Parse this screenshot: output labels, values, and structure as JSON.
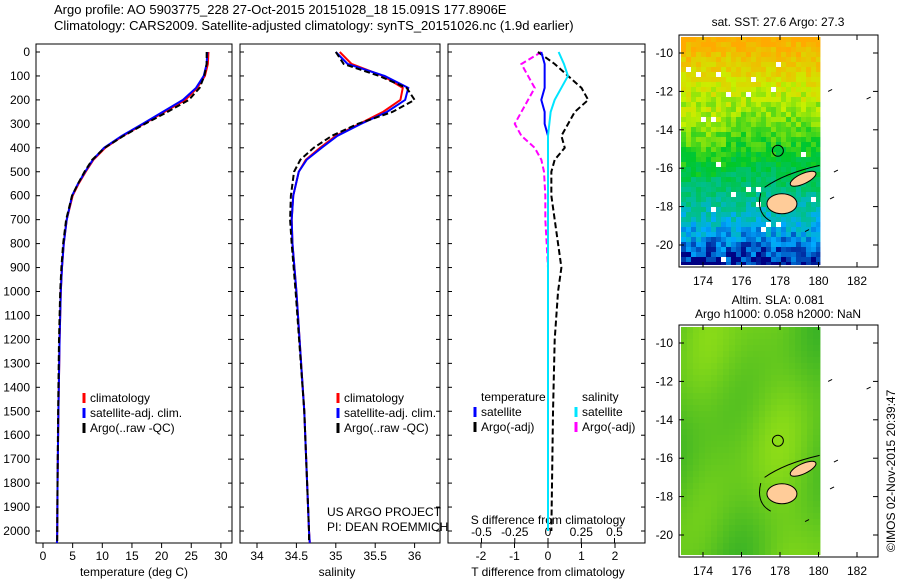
{
  "title": {
    "line1": "Argo profile: AO 5903775_228 27-Oct-2015 20151028_18 15.091S 177.8906E",
    "line2": "Climatology: CARS2009. Satellite-adjusted climatology: synTS_20151026.nc (1.9d earlier)"
  },
  "credit": "©IMOS 02-Nov-2015 20:39:47",
  "project": {
    "line1": "US ARGO PROJECT",
    "line2": "PI: DEAN ROEMMICH"
  },
  "colors": {
    "climatology": "#ff0000",
    "satellite": "#0000ff",
    "argo": "#000000",
    "sal_satellite": "#00e5ff",
    "sal_argo": "#ff00ff"
  },
  "chart_data": [
    {
      "type": "line",
      "id": "temperature",
      "xlabel": "temperature (deg C)",
      "ylabel": "",
      "xlim": [
        -1,
        31
      ],
      "ylim": [
        2050,
        0
      ],
      "xticks": [
        "0",
        "5",
        "10",
        "15",
        "20",
        "25",
        "30"
      ],
      "yticks": [
        "0",
        "100",
        "200",
        "300",
        "400",
        "500",
        "600",
        "700",
        "800",
        "900",
        "1000",
        "1100",
        "1200",
        "1300",
        "1400",
        "1500",
        "1600",
        "1700",
        "1800",
        "1900",
        "2000"
      ],
      "depth": [
        0,
        50,
        100,
        150,
        200,
        250,
        300,
        350,
        400,
        450,
        500,
        550,
        600,
        700,
        800,
        900,
        1000,
        1200,
        1500,
        1800,
        2000,
        2050
      ],
      "legend": [
        "climatology",
        "satellite-adj. clim.",
        "Argo(..raw -QC)"
      ],
      "series": [
        {
          "name": "climatology",
          "values": [
            27.9,
            27.8,
            27.3,
            26,
            24,
            20.5,
            17,
            13.5,
            10.5,
            8.5,
            7.2,
            6,
            5,
            4,
            3.5,
            3.2,
            3,
            2.8,
            2.6,
            2.45,
            2.4,
            2.35
          ]
        },
        {
          "name": "satellite-adj. clim.",
          "values": [
            27.7,
            27.6,
            27.1,
            25.8,
            23.6,
            20.2,
            16.8,
            13.3,
            10.3,
            8.4,
            7.1,
            5.9,
            4.9,
            4,
            3.5,
            3.2,
            3,
            2.8,
            2.6,
            2.45,
            2.4,
            2.35
          ]
        },
        {
          "name": "Argo(..raw -QC)",
          "values": [
            27.6,
            27.6,
            27.2,
            26.4,
            24.6,
            21,
            17.2,
            13.6,
            10.4,
            8.3,
            7,
            5.9,
            4.9,
            3.9,
            3.4,
            3.1,
            2.9,
            2.7,
            2.55,
            2.45,
            2.4,
            2.4
          ]
        }
      ]
    },
    {
      "type": "line",
      "id": "salinity",
      "xlabel": "salinity",
      "xlim": [
        33.8,
        36.3
      ],
      "ylim": [
        2050,
        0
      ],
      "xticks": [
        "34",
        "34.5",
        "35",
        "35.5",
        "36"
      ],
      "depth": [
        0,
        50,
        100,
        150,
        200,
        250,
        300,
        350,
        400,
        450,
        500,
        600,
        700,
        800,
        1000,
        1500,
        2000,
        2050
      ],
      "legend": [
        "climatology",
        "satellite-adj. clim.",
        "Argo(..raw -QC)"
      ],
      "series": [
        {
          "name": "climatology",
          "values": [
            35.05,
            35.2,
            35.6,
            35.85,
            35.82,
            35.6,
            35.3,
            35.0,
            34.8,
            34.62,
            34.53,
            34.46,
            34.44,
            34.45,
            34.5,
            34.6,
            34.66,
            34.67
          ]
        },
        {
          "name": "satellite-adj. clim.",
          "values": [
            35.0,
            35.15,
            35.62,
            35.92,
            35.88,
            35.65,
            35.32,
            35.02,
            34.82,
            34.63,
            34.53,
            34.46,
            34.44,
            34.45,
            34.5,
            34.6,
            34.66,
            34.67
          ]
        },
        {
          "name": "Argo(..raw -QC)",
          "values": [
            35.0,
            35.1,
            35.55,
            35.9,
            36.0,
            35.72,
            35.28,
            34.95,
            34.72,
            34.55,
            34.47,
            34.43,
            34.42,
            34.44,
            34.49,
            34.6,
            34.66,
            34.66
          ]
        }
      ]
    },
    {
      "type": "line",
      "id": "difference",
      "xlabel": "T difference from climatology",
      "x2label": "S difference from climatology",
      "xlim": [
        -2.9,
        2.9
      ],
      "ylim": [
        2050,
        0
      ],
      "xticks": [
        "-2",
        "-1",
        "0",
        "1",
        "2"
      ],
      "x2ticks": [
        "-0.5",
        "-0.25",
        "0",
        "0.25",
        "0.5"
      ],
      "depth": [
        0,
        50,
        100,
        150,
        200,
        250,
        300,
        350,
        400,
        450,
        500,
        600,
        700,
        800,
        900,
        1000,
        1200,
        1500,
        2000
      ],
      "legend_t": {
        "title": "temperature",
        "items": [
          "satellite",
          "Argo(-adj)"
        ]
      },
      "legend_s": {
        "title": "salinity",
        "items": [
          "satellite",
          "Argo(-adj)"
        ]
      },
      "series": [
        {
          "name": "T satellite",
          "values": [
            -0.2,
            -0.1,
            -0.1,
            -0.1,
            -0.2,
            -0.1,
            -0.1,
            0,
            0,
            0,
            0,
            0,
            0,
            0,
            0,
            0,
            0,
            0,
            0
          ]
        },
        {
          "name": "T Argo(-adj)",
          "values": [
            -0.3,
            0.2,
            0.6,
            1.0,
            1.2,
            0.8,
            0.6,
            0.4,
            0.5,
            0.2,
            0.1,
            0.1,
            0.2,
            0.3,
            0.4,
            0.3,
            0.2,
            0.15,
            0.1
          ]
        },
        {
          "name": "S satellite",
          "values": [
            0.08,
            0.12,
            0.15,
            0.1,
            0.05,
            0.02,
            0.01,
            0,
            0,
            0,
            0,
            0,
            0,
            0,
            0,
            0,
            0,
            0,
            0
          ]
        },
        {
          "name": "S Argo(-adj)",
          "values": [
            -0.05,
            -0.2,
            -0.15,
            -0.1,
            -0.15,
            -0.2,
            -0.25,
            -0.2,
            -0.1,
            -0.05,
            -0.03,
            -0.02,
            -0.02,
            -0.01,
            0,
            0,
            0,
            0,
            0
          ]
        }
      ]
    }
  ],
  "maps": {
    "sst": {
      "title": "sat. SST: 27.6 Argo: 27.3",
      "xticks": [
        "174",
        "176",
        "178",
        "180",
        "182"
      ],
      "yticks": [
        "-10",
        "-12",
        "-14",
        "-16",
        "-18",
        "-20"
      ],
      "argo_lon": 177.89,
      "argo_lat": -15.09
    },
    "sla": {
      "title1": "Altim. SLA: 0.081",
      "title2": "Argo h1000: 0.058 h2000: NaN",
      "xticks": [
        "174",
        "176",
        "178",
        "180",
        "182"
      ],
      "yticks": [
        "-10",
        "-12",
        "-14",
        "-16",
        "-18",
        "-20"
      ]
    }
  }
}
